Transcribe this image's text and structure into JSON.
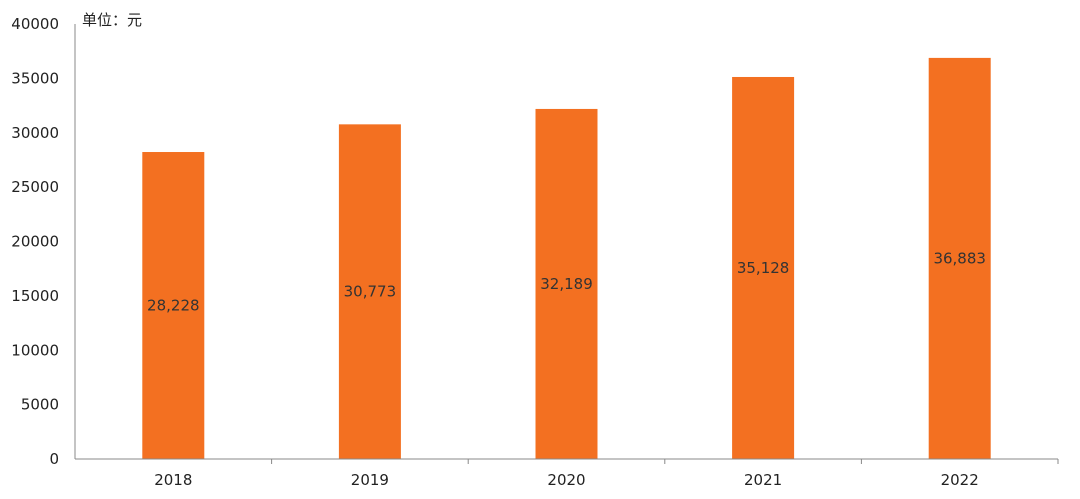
{
  "chart_data": {
    "type": "bar",
    "unit_label": "单位：元",
    "categories": [
      "2018",
      "2019",
      "2020",
      "2021",
      "2022"
    ],
    "values": [
      28228,
      30773,
      32189,
      35128,
      36883
    ],
    "data_labels": [
      "28,228",
      "30,773",
      "32,189",
      "35,128",
      "36,883"
    ],
    "ylim": [
      0,
      40000
    ],
    "yticks": [
      "0",
      "5000",
      "10000",
      "15000",
      "20000",
      "25000",
      "30000",
      "35000",
      "40000"
    ],
    "ytick_values": [
      0,
      5000,
      10000,
      15000,
      20000,
      25000,
      30000,
      35000,
      40000
    ],
    "bar_color": "#F37021",
    "grid": false
  }
}
